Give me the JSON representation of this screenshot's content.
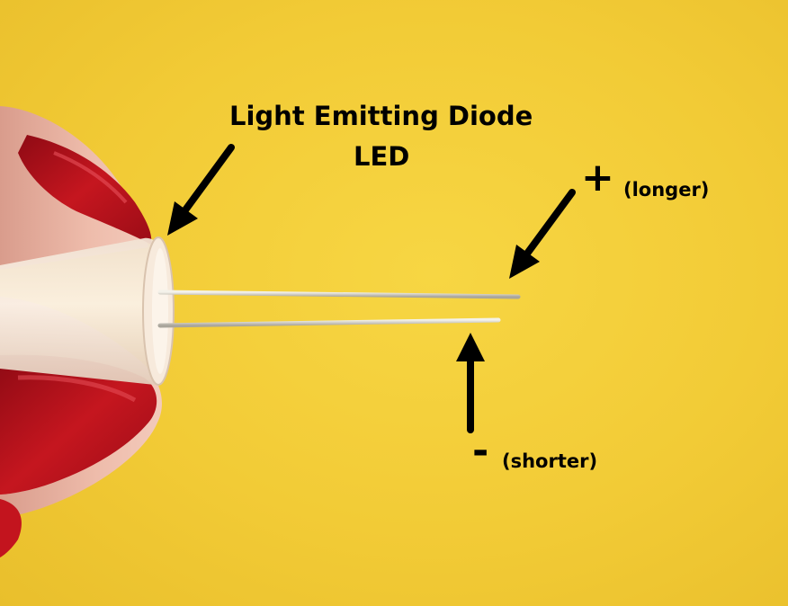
{
  "labels": {
    "title_line1": "Light Emitting Diode",
    "title_line2": "LED",
    "plus_sign": "+",
    "plus_note": "(longer)",
    "minus_sign": "-",
    "minus_note": "(shorter)"
  },
  "colors": {
    "background": "#f2cb36",
    "text": "#000000",
    "nail_polish": "#c3141e",
    "skin": "#e9b7a6",
    "lead_wire": "#d8d6cf"
  }
}
